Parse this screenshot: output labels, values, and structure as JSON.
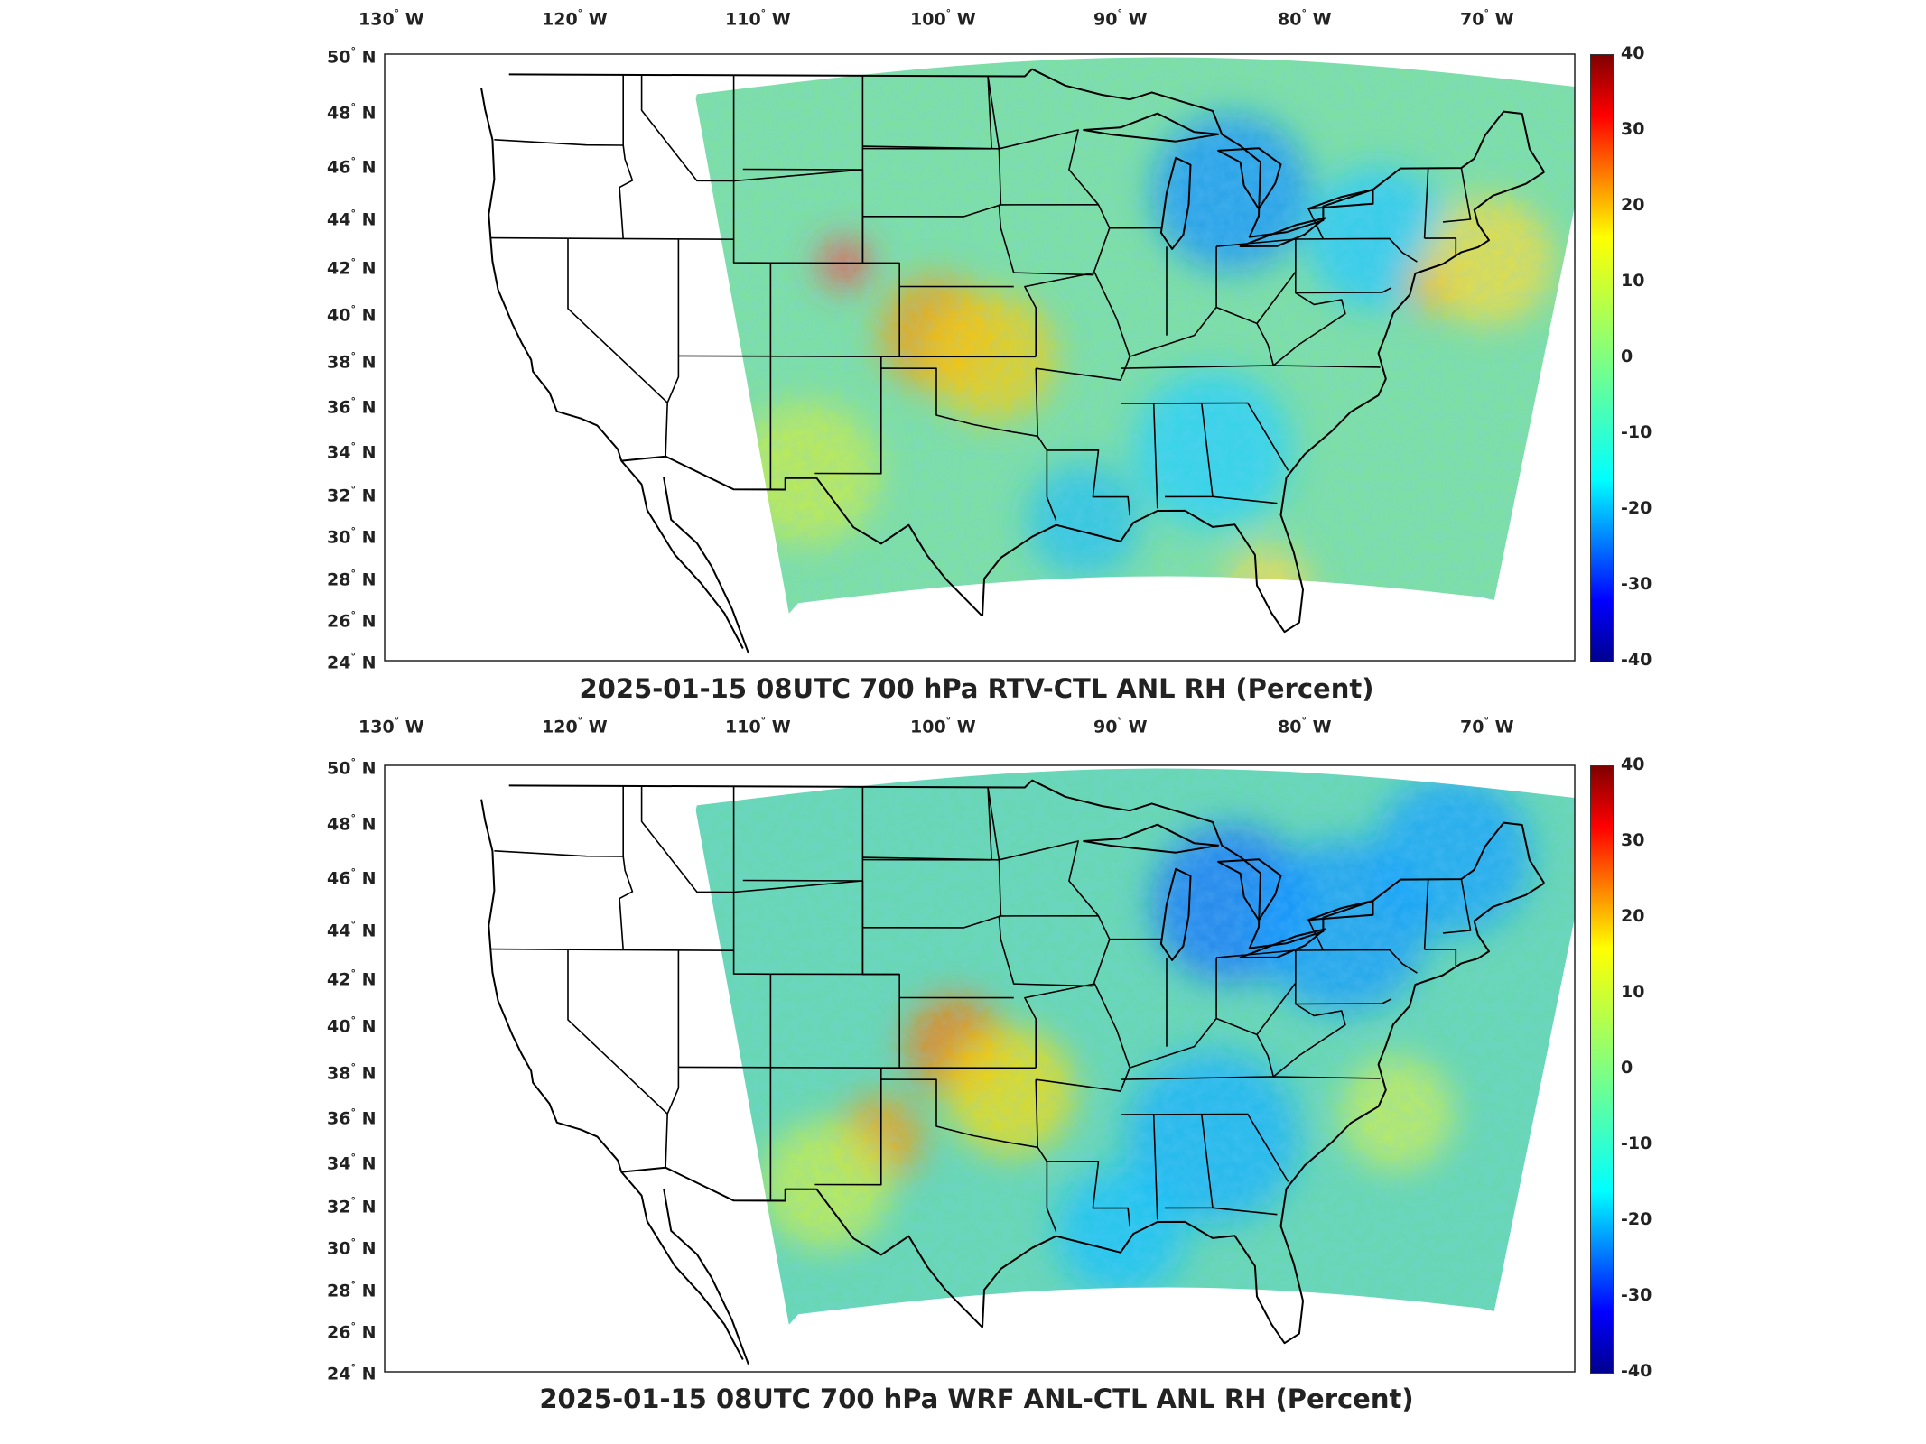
{
  "figure": {
    "colorbar": {
      "colors": [
        "#00008f",
        "#0000ff",
        "#0080ff",
        "#00ffff",
        "#40ffbf",
        "#80ff80",
        "#bfff40",
        "#ffff00",
        "#ff8000",
        "#ff0000",
        "#800000"
      ],
      "ticks": [
        "40",
        "30",
        "20",
        "10",
        "0",
        "-10",
        "-20",
        "-30",
        "-40"
      ],
      "range": [
        -40,
        40
      ]
    },
    "lon_labels": [
      "130",
      "120",
      "110",
      "100",
      "90",
      "80",
      "70"
    ],
    "lon_suffix": "W",
    "lat_labels": [
      "50",
      "48",
      "46",
      "44",
      "42",
      "40",
      "38",
      "36",
      "34",
      "32",
      "30",
      "28",
      "26",
      "24"
    ],
    "lat_suffix": "N",
    "degree_symbol": "°",
    "panels": [
      {
        "title": "2025-01-15 08UTC 700 hPa RTV-CTL ANL RH (Percent)",
        "field_mean_color": "#7ee0a0",
        "blobs": [
          {
            "lon": -105,
            "lat": 41,
            "c": "#ff4040",
            "r": 18
          },
          {
            "lon": -100,
            "lat": 38,
            "c": "#ff9900",
            "r": 40
          },
          {
            "lon": -97,
            "lat": 37,
            "c": "#ffcc00",
            "r": 45
          },
          {
            "lon": -84,
            "lat": 44,
            "c": "#1090ff",
            "r": 55
          },
          {
            "lon": -76,
            "lat": 42,
            "c": "#20c8ff",
            "r": 50
          },
          {
            "lon": -73,
            "lat": 40,
            "c": "#ffaa00",
            "r": 20
          },
          {
            "lon": -70,
            "lat": 41,
            "c": "#ffdd33",
            "r": 45
          },
          {
            "lon": -85,
            "lat": 33,
            "c": "#20d0ff",
            "r": 55
          },
          {
            "lon": -92,
            "lat": 30,
            "c": "#20c0f0",
            "r": 40
          },
          {
            "lon": -107,
            "lat": 32,
            "c": "#cfee40",
            "r": 50
          },
          {
            "lon": -82,
            "lat": 27,
            "c": "#ffdd44",
            "r": 30
          }
        ]
      },
      {
        "title": "2025-01-15 08UTC 700 hPa WRF ANL-CTL ANL RH (Percent)",
        "field_mean_color": "#68d8b0",
        "blobs": [
          {
            "lon": -99,
            "lat": 38,
            "c": "#ff7700",
            "r": 35
          },
          {
            "lon": -96,
            "lat": 36,
            "c": "#ffdd00",
            "r": 45
          },
          {
            "lon": -103,
            "lat": 34,
            "c": "#ff9900",
            "r": 30
          },
          {
            "lon": -84,
            "lat": 44,
            "c": "#0a70ff",
            "r": 55
          },
          {
            "lon": -78,
            "lat": 43,
            "c": "#1098ff",
            "r": 60
          },
          {
            "lon": -72,
            "lat": 46,
            "c": "#10a0ff",
            "r": 55
          },
          {
            "lon": -85,
            "lat": 34,
            "c": "#10b0ff",
            "r": 60
          },
          {
            "lon": -90,
            "lat": 30,
            "c": "#10c0ff",
            "r": 45
          },
          {
            "lon": -106,
            "lat": 32,
            "c": "#d0f040",
            "r": 45
          },
          {
            "lon": -75,
            "lat": 35,
            "c": "#d0f050",
            "r": 40
          }
        ]
      }
    ]
  }
}
